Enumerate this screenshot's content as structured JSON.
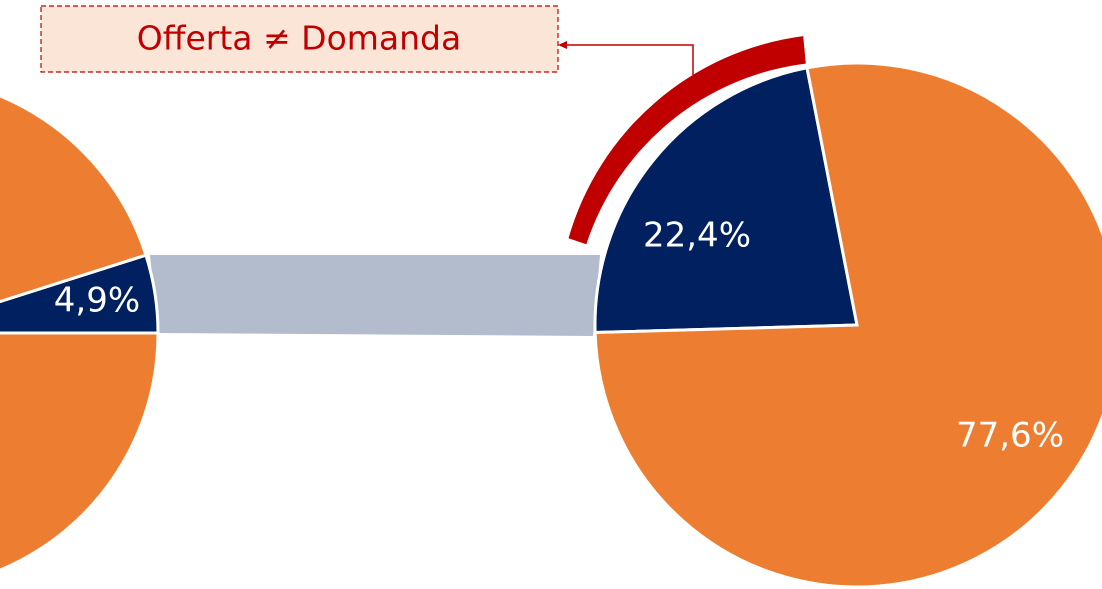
{
  "chart_data": [
    {
      "type": "pie",
      "values": [
        4.9,
        95.1
      ],
      "value_labels": [
        "4,9%",
        null
      ],
      "colors": [
        "#002060",
        "#ed7d31"
      ]
    },
    {
      "type": "pie",
      "values": [
        22.4,
        77.6
      ],
      "value_labels": [
        "22,4%",
        "77,6%"
      ],
      "colors": [
        "#002060",
        "#ed7d31"
      ],
      "annotation": "Offerta ≠ Domanda"
    }
  ]
}
